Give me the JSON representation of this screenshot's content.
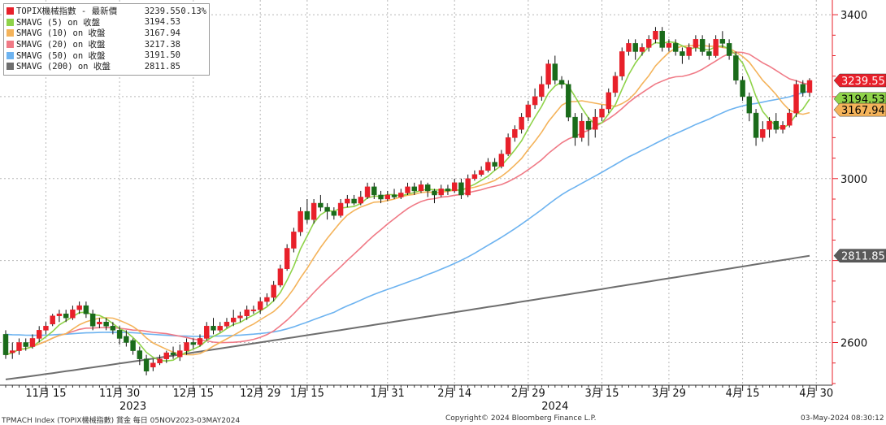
{
  "chart_data": {
    "type": "candlestick",
    "title": "",
    "xlabel": "",
    "ylabel": "",
    "ylim": [
      2480,
      3420
    ],
    "yticks": [
      2600,
      3000,
      3400
    ],
    "yticks_labeled": [
      2600,
      3000,
      3400
    ],
    "grid": true,
    "x_tick_labels": [
      {
        "label": "11月 15",
        "index": 6
      },
      {
        "label": "11月 30",
        "index": 17
      },
      {
        "label": "12月 15",
        "index": 28
      },
      {
        "label": "12月 29",
        "index": 38
      },
      {
        "label": "1月 15",
        "index": 45
      },
      {
        "label": "1月 31",
        "index": 57
      },
      {
        "label": "2月 14",
        "index": 67
      },
      {
        "label": "2月 29",
        "index": 78
      },
      {
        "label": "3月 15",
        "index": 89
      },
      {
        "label": "3月 29",
        "index": 99
      },
      {
        "label": "4月 15",
        "index": 110
      },
      {
        "label": "4月 30",
        "index": 121
      }
    ],
    "year_labels": [
      {
        "label": "2023",
        "index": 19
      },
      {
        "label": "2024",
        "index": 82
      }
    ],
    "candles": [
      [
        2620,
        2570,
        2630,
        2560
      ],
      [
        2575,
        2580,
        2600,
        2560
      ],
      [
        2580,
        2600,
        2610,
        2570
      ],
      [
        2600,
        2590,
        2610,
        2580
      ],
      [
        2590,
        2610,
        2620,
        2585
      ],
      [
        2610,
        2630,
        2640,
        2600
      ],
      [
        2630,
        2640,
        2650,
        2620
      ],
      [
        2645,
        2665,
        2670,
        2640
      ],
      [
        2665,
        2670,
        2680,
        2650
      ],
      [
        2670,
        2660,
        2680,
        2650
      ],
      [
        2660,
        2680,
        2690,
        2655
      ],
      [
        2680,
        2690,
        2700,
        2670
      ],
      [
        2690,
        2670,
        2700,
        2660
      ],
      [
        2670,
        2640,
        2680,
        2630
      ],
      [
        2645,
        2650,
        2660,
        2635
      ],
      [
        2650,
        2640,
        2660,
        2630
      ],
      [
        2640,
        2630,
        2650,
        2620
      ],
      [
        2630,
        2610,
        2640,
        2595
      ],
      [
        2615,
        2600,
        2630,
        2590
      ],
      [
        2605,
        2580,
        2610,
        2570
      ],
      [
        2580,
        2560,
        2590,
        2545
      ],
      [
        2560,
        2530,
        2570,
        2520
      ],
      [
        2540,
        2550,
        2560,
        2530
      ],
      [
        2550,
        2560,
        2570,
        2545
      ],
      [
        2560,
        2575,
        2580,
        2550
      ],
      [
        2575,
        2570,
        2590,
        2560
      ],
      [
        2565,
        2580,
        2595,
        2555
      ],
      [
        2580,
        2600,
        2610,
        2570
      ],
      [
        2600,
        2595,
        2610,
        2585
      ],
      [
        2595,
        2610,
        2620,
        2590
      ],
      [
        2610,
        2640,
        2650,
        2605
      ],
      [
        2640,
        2630,
        2660,
        2620
      ],
      [
        2630,
        2640,
        2650,
        2625
      ],
      [
        2640,
        2650,
        2660,
        2635
      ],
      [
        2650,
        2660,
        2680,
        2640
      ],
      [
        2660,
        2665,
        2675,
        2650
      ],
      [
        2665,
        2680,
        2690,
        2655
      ],
      [
        2680,
        2680,
        2690,
        2670
      ],
      [
        2680,
        2700,
        2710,
        2670
      ],
      [
        2700,
        2710,
        2720,
        2690
      ],
      [
        2710,
        2740,
        2750,
        2700
      ],
      [
        2740,
        2780,
        2790,
        2735
      ],
      [
        2780,
        2830,
        2840,
        2775
      ],
      [
        2830,
        2870,
        2880,
        2820
      ],
      [
        2870,
        2920,
        2930,
        2860
      ],
      [
        2920,
        2900,
        2950,
        2890
      ],
      [
        2900,
        2940,
        2950,
        2890
      ],
      [
        2940,
        2930,
        2960,
        2920
      ],
      [
        2930,
        2920,
        2940,
        2900
      ],
      [
        2920,
        2910,
        2930,
        2900
      ],
      [
        2910,
        2940,
        2950,
        2905
      ],
      [
        2940,
        2950,
        2960,
        2930
      ],
      [
        2950,
        2940,
        2960,
        2935
      ],
      [
        2940,
        2955,
        2970,
        2935
      ],
      [
        2955,
        2980,
        2990,
        2950
      ],
      [
        2980,
        2960,
        2990,
        2950
      ],
      [
        2960,
        2950,
        2970,
        2940
      ],
      [
        2950,
        2960,
        2970,
        2945
      ],
      [
        2960,
        2955,
        2975,
        2950
      ],
      [
        2955,
        2965,
        2975,
        2950
      ],
      [
        2965,
        2980,
        2990,
        2960
      ],
      [
        2980,
        2970,
        2990,
        2960
      ],
      [
        2970,
        2985,
        2995,
        2965
      ],
      [
        2985,
        2970,
        2990,
        2955
      ],
      [
        2970,
        2960,
        2975,
        2940
      ],
      [
        2960,
        2975,
        2985,
        2955
      ],
      [
        2975,
        2970,
        2985,
        2960
      ],
      [
        2970,
        2990,
        3000,
        2965
      ],
      [
        2990,
        2960,
        3000,
        2950
      ],
      [
        2960,
        3000,
        3010,
        2955
      ],
      [
        3000,
        3010,
        3020,
        2995
      ],
      [
        3010,
        3020,
        3030,
        3005
      ],
      [
        3020,
        3040,
        3050,
        3015
      ],
      [
        3040,
        3030,
        3050,
        3020
      ],
      [
        3030,
        3060,
        3070,
        3025
      ],
      [
        3060,
        3100,
        3110,
        3055
      ],
      [
        3100,
        3120,
        3130,
        3090
      ],
      [
        3120,
        3150,
        3160,
        3110
      ],
      [
        3150,
        3180,
        3190,
        3140
      ],
      [
        3180,
        3200,
        3220,
        3170
      ],
      [
        3200,
        3230,
        3250,
        3190
      ],
      [
        3230,
        3280,
        3290,
        3220
      ],
      [
        3280,
        3240,
        3300,
        3230
      ],
      [
        3240,
        3230,
        3250,
        3220
      ],
      [
        3230,
        3150,
        3240,
        3140
      ],
      [
        3150,
        3100,
        3160,
        3080
      ],
      [
        3100,
        3140,
        3160,
        3090
      ],
      [
        3140,
        3120,
        3150,
        3080
      ],
      [
        3120,
        3150,
        3170,
        3100
      ],
      [
        3150,
        3170,
        3180,
        3140
      ],
      [
        3170,
        3210,
        3220,
        3160
      ],
      [
        3210,
        3250,
        3260,
        3200
      ],
      [
        3250,
        3310,
        3320,
        3240
      ],
      [
        3310,
        3330,
        3340,
        3300
      ],
      [
        3330,
        3310,
        3340,
        3290
      ],
      [
        3310,
        3320,
        3330,
        3300
      ],
      [
        3320,
        3340,
        3350,
        3310
      ],
      [
        3340,
        3360,
        3370,
        3330
      ],
      [
        3360,
        3320,
        3370,
        3310
      ],
      [
        3320,
        3330,
        3340,
        3310
      ],
      [
        3330,
        3310,
        3340,
        3300
      ],
      [
        3310,
        3300,
        3320,
        3280
      ],
      [
        3300,
        3320,
        3330,
        3290
      ],
      [
        3320,
        3340,
        3350,
        3310
      ],
      [
        3340,
        3310,
        3350,
        3300
      ],
      [
        3310,
        3300,
        3330,
        3290
      ],
      [
        3300,
        3340,
        3350,
        3295
      ],
      [
        3340,
        3330,
        3360,
        3320
      ],
      [
        3330,
        3300,
        3340,
        3290
      ],
      [
        3300,
        3240,
        3310,
        3230
      ],
      [
        3240,
        3200,
        3250,
        3190
      ],
      [
        3200,
        3160,
        3210,
        3140
      ],
      [
        3160,
        3100,
        3170,
        3080
      ],
      [
        3100,
        3120,
        3140,
        3090
      ],
      [
        3120,
        3140,
        3150,
        3100
      ],
      [
        3140,
        3120,
        3160,
        3110
      ],
      [
        3120,
        3130,
        3140,
        3110
      ],
      [
        3130,
        3160,
        3170,
        3125
      ],
      [
        3160,
        3230,
        3240,
        3150
      ],
      [
        3230,
        3210,
        3240,
        3200
      ],
      [
        3210,
        3239.55,
        3245,
        3200
      ]
    ],
    "series": [
      {
        "name": "TOPIX機械指數 - 最新價",
        "value": "3239.55",
        "change": "0.13%",
        "color": "#e8202a"
      },
      {
        "name": "SMAVG (5)  on 收盤",
        "value": "3194.53",
        "color": "#8fd34a",
        "period": 5
      },
      {
        "name": "SMAVG (10)  on 收盤",
        "value": "3167.94",
        "color": "#f4b35a",
        "period": 10
      },
      {
        "name": "SMAVG (20)  on 收盤",
        "value": "3217.38",
        "color": "#f07a86",
        "period": 20
      },
      {
        "name": "SMAVG (50)  on 收盤",
        "value": "3191.50",
        "color": "#6db3f0",
        "period": 50
      },
      {
        "name": "SMAVG (200)  on 收盤",
        "value": "2811.85",
        "color": "#6e6e6e",
        "period": 200
      }
    ],
    "sma200_start": 2510,
    "sma200_end": 2811.85,
    "sma50_start": 2620,
    "price_tags": [
      {
        "text": "3239.55",
        "value": 3239.55,
        "bg": "#e8202a",
        "fg": "#ffffff"
      },
      {
        "text": "3194.53",
        "value": 3194.53,
        "bg": "#8fd34a",
        "fg": "#000000"
      },
      {
        "text": "3167.94",
        "value": 3167.94,
        "bg": "#f4b35a",
        "fg": "#000000"
      },
      {
        "text": "2811.85",
        "value": 2811.85,
        "bg": "#5a5a5a",
        "fg": "#ffffff"
      }
    ],
    "up_color": "#e8202a",
    "down_color": "#1a6b1a"
  },
  "footer": {
    "left": "TPMACH Index (TOPIX機械指數) 賞金  每日 05NOV2023-03MAY2024",
    "center": "Copyright© 2024 Bloomberg Finance L.P.",
    "right": "03-May-2024 08:30:12"
  }
}
